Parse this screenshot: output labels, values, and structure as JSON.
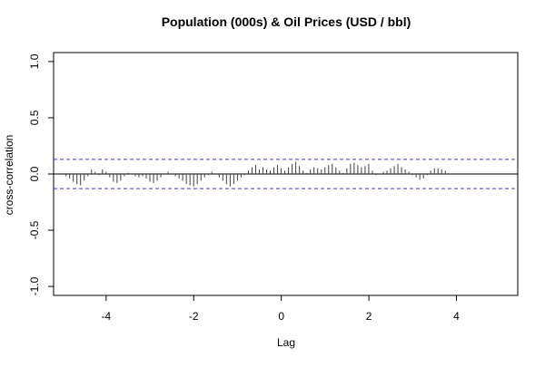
{
  "chart_data": {
    "type": "bar",
    "title": "Population (000s) & Oil Prices (USD / bbl)",
    "xlabel": "Lag",
    "ylabel": "cross-correlation",
    "xlim": [
      -5.2,
      5.4
    ],
    "ylim": [
      -1.08,
      1.08
    ],
    "xticks": [
      -4,
      -2,
      0,
      2,
      4
    ],
    "yticks": [
      -1.0,
      -0.5,
      0.0,
      0.5,
      1.0
    ],
    "xtick_labels": [
      "-4",
      "-2",
      "0",
      "2",
      "4"
    ],
    "ytick_labels": [
      "-1.0",
      "-0.5",
      "0.0",
      "0.5",
      "1.0"
    ],
    "confidence_band": 0.13,
    "colors": {
      "bars": "#404040",
      "band": "#3333cc",
      "zero": "#000000",
      "frame": "#000000"
    },
    "lag_start": -4.917,
    "lag_step": 0.0833,
    "values": [
      -0.02,
      -0.04,
      -0.07,
      -0.09,
      -0.1,
      -0.06,
      -0.02,
      0.04,
      0.02,
      -0.01,
      0.04,
      0.02,
      -0.03,
      -0.07,
      -0.08,
      -0.06,
      -0.02,
      0.01,
      0.0,
      -0.02,
      -0.03,
      -0.02,
      -0.04,
      -0.07,
      -0.08,
      -0.06,
      -0.03,
      0.0,
      0.02,
      0.0,
      -0.02,
      -0.04,
      -0.06,
      -0.09,
      -0.1,
      -0.11,
      -0.09,
      -0.06,
      -0.03,
      -0.01,
      0.02,
      0.0,
      -0.03,
      -0.06,
      -0.09,
      -0.11,
      -0.09,
      -0.06,
      -0.03,
      -0.01,
      0.03,
      0.06,
      0.08,
      0.04,
      0.06,
      0.04,
      0.03,
      0.06,
      0.08,
      0.05,
      0.03,
      0.06,
      0.09,
      0.11,
      0.07,
      0.03,
      0.01,
      0.04,
      0.06,
      0.05,
      0.04,
      0.06,
      0.08,
      0.09,
      0.06,
      0.03,
      0.01,
      0.05,
      0.09,
      0.1,
      0.08,
      0.06,
      0.07,
      0.09,
      0.03,
      -0.01,
      0.0,
      0.02,
      0.03,
      0.05,
      0.07,
      0.09,
      0.06,
      0.04,
      0.02,
      -0.01,
      -0.03,
      -0.05,
      -0.04,
      -0.01,
      0.03,
      0.05,
      0.05,
      0.04,
      0.03
    ]
  }
}
